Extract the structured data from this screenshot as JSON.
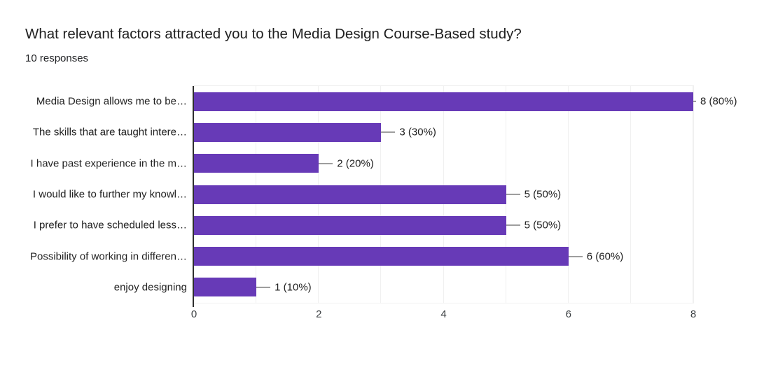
{
  "header": {
    "title": "What relevant factors attracted you to the Media Design Course-Based study?",
    "subtitle": "10 responses"
  },
  "chart_data": {
    "type": "bar",
    "orientation": "horizontal",
    "title": "What relevant factors attracted you to the Media Design Course-Based study?",
    "subtitle": "10 responses",
    "categories": [
      "Media Design allows me to be…",
      "The skills that are taught intere…",
      "I have past experience in the m…",
      "I would like to further my knowl…",
      "I prefer to have scheduled less…",
      "Possibility of working in differen…",
      "enjoy designing"
    ],
    "values": [
      8,
      3,
      2,
      5,
      5,
      6,
      1
    ],
    "value_labels": [
      "8 (80%)",
      "3 (30%)",
      "2 (20%)",
      "5 (50%)",
      "5 (50%)",
      "6 (60%)",
      "1 (10%)"
    ],
    "x_ticks": [
      0,
      2,
      4,
      6,
      8
    ],
    "xlim": [
      0,
      8
    ],
    "xlabel": "",
    "ylabel": "",
    "grid": "vertical gridlines every 1 unit",
    "legend": "none",
    "bar_color": "#673ab7",
    "gridline_color": "#f0f0f0",
    "axis_line_color": "#2e2e2e",
    "leader_line_color": "#9e9e9e",
    "label_color": "#212121"
  }
}
